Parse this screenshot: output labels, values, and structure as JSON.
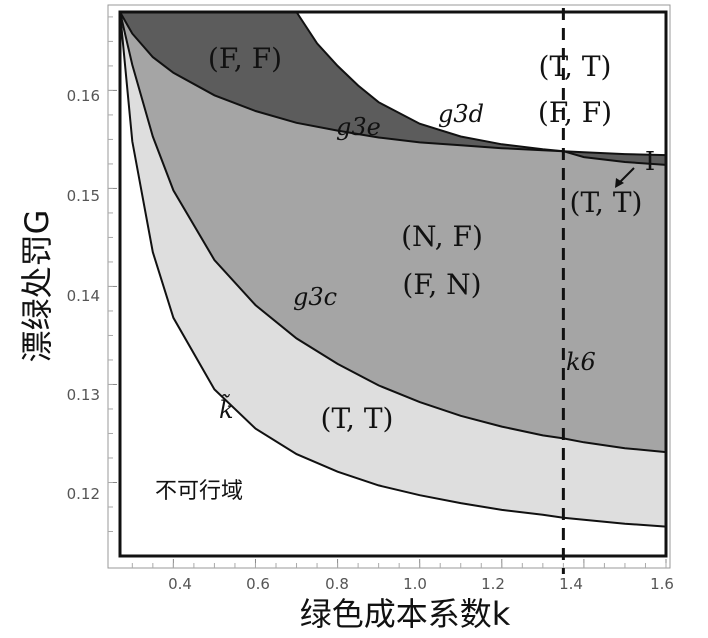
{
  "chart_data": {
    "type": "area",
    "xlabel": "绿色成本系数k",
    "ylabel": "漂绿处罚G",
    "xlim": [
      0.27,
      1.6
    ],
    "ylim": [
      0.1125,
      0.168
    ],
    "x_ticks": [
      "0.4",
      "0.6",
      "0.8",
      "1.0",
      "1.2",
      "1.4",
      "1.6"
    ],
    "y_ticks": [
      "0.12",
      "0.13",
      "0.14",
      "0.15",
      "0.16"
    ],
    "grid": false,
    "series": [
      {
        "name": "k̃",
        "x": [
          0.27,
          0.3,
          0.35,
          0.4,
          0.5,
          0.6,
          0.7,
          0.8,
          0.9,
          1.0,
          1.1,
          1.2,
          1.3,
          1.35,
          1.4,
          1.5,
          1.6
        ],
        "y": [
          0.168,
          0.1548,
          0.1435,
          0.1368,
          0.1295,
          0.1255,
          0.1229,
          0.1211,
          0.1197,
          0.1187,
          0.1179,
          0.1172,
          0.1167,
          0.1164,
          0.1162,
          0.1158,
          0.1155
        ]
      },
      {
        "name": "g3c",
        "x": [
          0.27,
          0.3,
          0.35,
          0.4,
          0.5,
          0.6,
          0.7,
          0.8,
          0.9,
          1.0,
          1.1,
          1.2,
          1.3,
          1.35,
          1.4,
          1.5,
          1.6
        ],
        "y": [
          0.168,
          0.1626,
          0.1553,
          0.1498,
          0.1427,
          0.1381,
          0.1347,
          0.1321,
          0.1299,
          0.1282,
          0.1268,
          0.1257,
          0.1248,
          0.1245,
          0.1241,
          0.1235,
          0.1231
        ]
      },
      {
        "name": "g3e",
        "x": [
          0.27,
          0.3,
          0.35,
          0.4,
          0.5,
          0.6,
          0.7,
          0.8,
          0.9,
          1.0,
          1.1,
          1.2,
          1.3,
          1.35,
          1.4,
          1.5,
          1.6
        ],
        "y": [
          0.168,
          0.1658,
          0.1634,
          0.1618,
          0.1595,
          0.1579,
          0.1567,
          0.1559,
          0.1552,
          0.1547,
          0.1544,
          0.1541,
          0.1539,
          0.1538,
          0.1537,
          0.1535,
          0.1534
        ]
      },
      {
        "name": "g3d",
        "x": [
          0.7,
          0.75,
          0.8,
          0.85,
          0.9,
          1.0,
          1.1,
          1.2,
          1.3,
          1.35,
          1.4,
          1.5,
          1.6
        ],
        "y": [
          0.168,
          0.1648,
          0.1625,
          0.1605,
          0.1588,
          0.1566,
          0.1553,
          0.1545,
          0.154,
          0.1538,
          0.1532,
          0.1527,
          0.1524
        ]
      }
    ],
    "vertical_line": {
      "label": "k6",
      "x": 1.35,
      "style": "dashed"
    },
    "region_labels": {
      "ff_top": "(F, F)",
      "tt_top": "(T, T)",
      "ff_right": "(F, F)",
      "tt_right": "(T, T)",
      "nf": "(N, F)",
      "fn": "(F, N)",
      "tt_bottom": "(T, T)",
      "infeasible": "不可行域",
      "marker": "I"
    }
  }
}
